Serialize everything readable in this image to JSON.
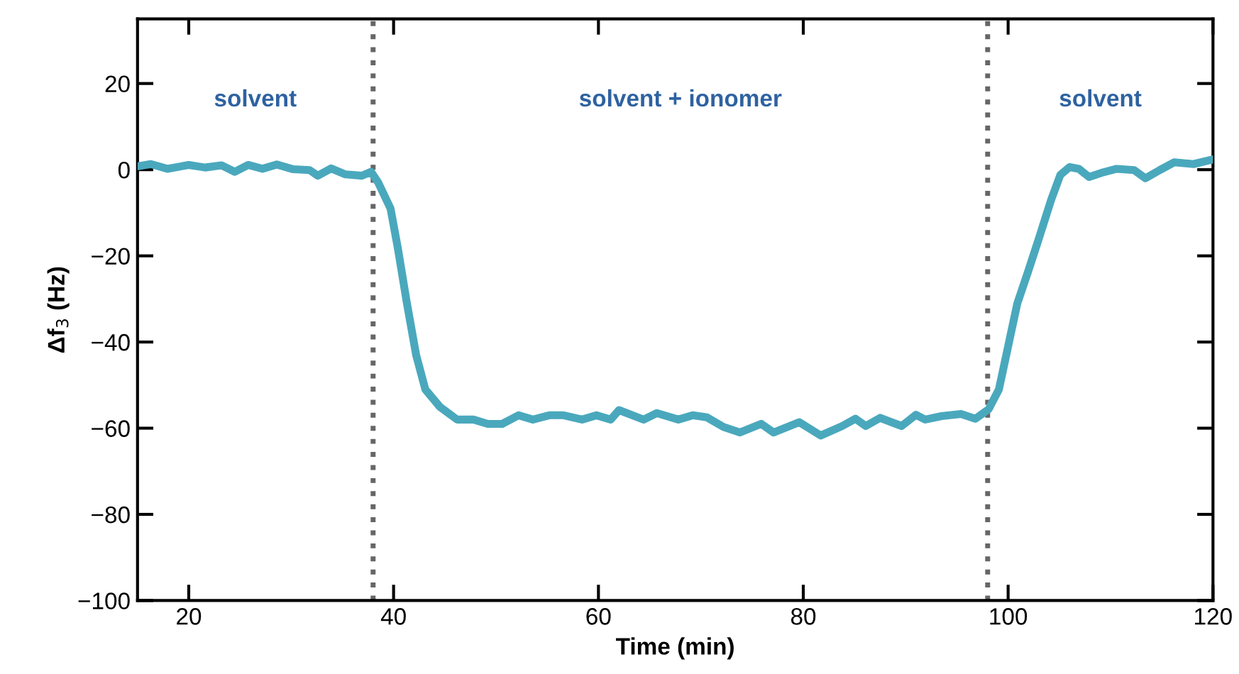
{
  "chart_data": {
    "type": "line",
    "xlabel": "Time (min)",
    "ylabel": "Δf$_{3}$ (Hz)",
    "x": [
      15.1,
      16.3,
      17.9,
      20,
      21.6,
      23.2,
      24.5,
      25.8,
      27.2,
      28.6,
      30.2,
      31.8,
      32.6,
      33.9,
      35.3,
      36.9,
      37.8,
      38.5,
      39.7,
      40.4,
      41.3,
      42.2,
      43.1,
      44.5,
      46.2,
      47.8,
      49.2,
      50.6,
      52.2,
      53.6,
      55.2,
      56.6,
      58.4,
      59.8,
      61.2,
      62.0,
      64.4,
      65.7,
      67.8,
      69.2,
      70.6,
      72.2,
      73.8,
      75.9,
      77.1,
      79.6,
      81.7,
      83.8,
      85.1,
      86.1,
      87.5,
      89.6,
      91.0,
      91.9,
      93.5,
      95.4,
      96.8,
      98.1,
      99.1,
      100,
      100.9,
      101.9,
      103,
      104.2,
      105.1,
      106,
      106.9,
      107.9,
      109.3,
      110.6,
      112.3,
      113.4,
      114.8,
      116.2,
      118.1,
      120
    ],
    "series": [
      {
        "color": "#4aa8bd",
        "values": [
          0.8,
          1.3,
          0.2,
          1.1,
          0.5,
          1.0,
          -0.5,
          1.1,
          0.2,
          1.2,
          0.1,
          -0.1,
          -1.4,
          0.3,
          -1.1,
          -1.4,
          -0.5,
          -3,
          -9,
          -18,
          -31,
          -43,
          -51,
          -55,
          -58,
          -58,
          -59,
          -59,
          -57,
          -58,
          -57,
          -57,
          -58,
          -57,
          -58,
          -55.8,
          -58,
          -56.5,
          -58,
          -57,
          -57.5,
          -59.7,
          -61,
          -59,
          -61,
          -58.6,
          -61.7,
          -59.5,
          -57.8,
          -59.5,
          -57.6,
          -59.5,
          -56.9,
          -58,
          -57.2,
          -56.7,
          -57.8,
          -55.6,
          -51,
          -41,
          -31,
          -24,
          -16,
          -7,
          -1.2,
          0.6,
          0.2,
          -1.7,
          -0.6,
          0.2,
          -0.1,
          -2,
          -0.1,
          1.7,
          1.3,
          2.4
        ]
      }
    ],
    "xlim": [
      15,
      120
    ],
    "xticks": [
      20,
      40,
      60,
      80,
      100,
      120
    ],
    "ylim": [
      -100,
      35
    ],
    "yticks": [
      -100,
      -80,
      -60,
      -40,
      -20,
      0,
      20
    ],
    "ref_lines": [
      {
        "axis": "x",
        "value": 38,
        "color": "#666666",
        "line_style": "dotted"
      },
      {
        "axis": "x",
        "value": 98,
        "color": "#666666",
        "line_style": "dotted"
      }
    ],
    "annotations": [
      "solvent",
      "solvent + ionomer",
      "solvent"
    ],
    "grid": false,
    "legend": false,
    "marker": "none",
    "line_style": "solid"
  }
}
